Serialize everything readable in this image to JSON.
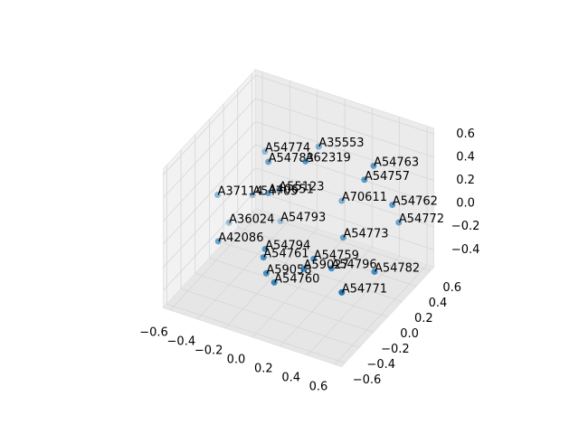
{
  "chart_data": {
    "type": "scatter3d",
    "color": "#1f77b4",
    "grid": true,
    "labels": [
      "A54774",
      "A35553",
      "A54783",
      "A62319",
      "A54763",
      "A54757",
      "A37114",
      "A54705",
      "A55123",
      "A40651",
      "A70611",
      "A54762",
      "A54772",
      "A36024",
      "A54793",
      "A42086",
      "A54773",
      "A54794",
      "A54761",
      "A54759",
      "A54796",
      "A54782",
      "A59058",
      "A59027",
      "A54760",
      "A54771"
    ],
    "x": [
      -0.4,
      -0.06,
      -0.22,
      0.05,
      0.34,
      0.325,
      -0.59,
      -0.49,
      -0.35,
      -0.22,
      0.056,
      0.425,
      0.42,
      -0.61,
      -0.39,
      -0.43,
      0.17,
      -0.14,
      -0.1,
      0.11,
      0.24,
      0.45,
      -0.08,
      0.14,
      0.03,
      0.47
    ],
    "y": [
      0.3,
      0.4,
      0,
      0,
      0.4,
      0.3,
      0,
      0.3,
      0.4,
      0,
      0.5,
      0.5,
      0.6,
      0.2,
      0.5,
      -0.3,
      0.3,
      -0.2,
      -0.3,
      0,
      0,
      0.2,
      -0.3,
      -0.2,
      -0.4,
      -0.3
    ],
    "z": [
      0.27,
      0.38,
      0.45,
      0.56,
      0.37,
      0.31,
      0.02,
      -0.14,
      -0.11,
      0.18,
      -0.11,
      0.0,
      -0.22,
      -0.36,
      -0.46,
      -0.12,
      -0.25,
      -0.14,
      -0.13,
      -0.26,
      -0.29,
      -0.37,
      -0.26,
      -0.2,
      -0.23,
      -0.21
    ],
    "xlim": [
      -0.65,
      0.65
    ],
    "ylim": [
      -0.65,
      0.65
    ],
    "zlim": [
      -0.55,
      0.65
    ],
    "xticks": [
      {
        "value": -0.6,
        "label": "−0.6"
      },
      {
        "value": -0.4,
        "label": "−0.4"
      },
      {
        "value": -0.2,
        "label": "−0.2"
      },
      {
        "value": 0,
        "label": "0.0"
      },
      0.2,
      0.4,
      0.6
    ],
    "yticks": [
      {
        "value": -0.6,
        "label": "−0.6"
      },
      {
        "value": -0.4,
        "label": "−0.4"
      },
      {
        "value": -0.2,
        "label": "−0.2"
      },
      {
        "value": 0,
        "label": "0.0"
      },
      0.2,
      0.4,
      0.6
    ],
    "zticks": [
      {
        "value": -0.4,
        "label": "−0.4"
      },
      {
        "value": -0.2,
        "label": "−0.2"
      },
      {
        "value": 0,
        "label": "0.0"
      },
      0.2,
      0.4,
      0.6
    ]
  }
}
